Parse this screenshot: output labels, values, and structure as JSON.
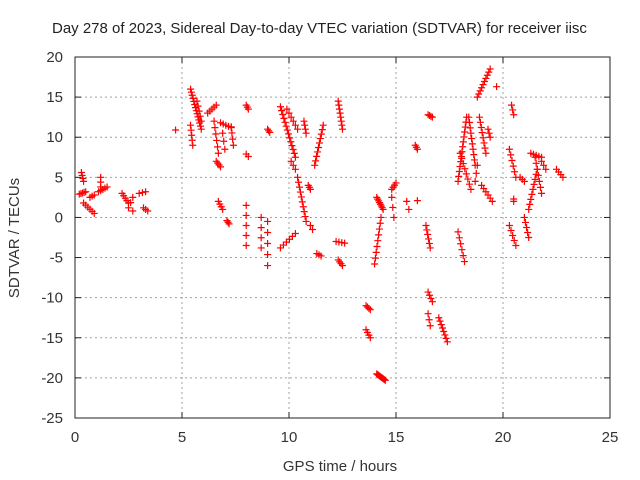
{
  "chart_data": {
    "type": "scatter",
    "title": "Day 278 of 2023, Sidereal Day-to-day VTEC variation (SDTVAR) for receiver iisc",
    "xlabel": "GPS time / hours",
    "ylabel": "SDTVAR / TECUs",
    "xlim": [
      0,
      25
    ],
    "ylim": [
      -25,
      20
    ],
    "x_ticks": [
      "0",
      "5",
      "10",
      "15",
      "20",
      "25"
    ],
    "y_ticks": [
      "-25",
      "-20",
      "-15",
      "-10",
      "-5",
      "0",
      "5",
      "10",
      "15",
      "20"
    ],
    "grid": true,
    "marker": "plus",
    "color": "#ff0000",
    "segments": [
      {
        "x1": 0.2,
        "y1": 2.9,
        "x2": 0.5,
        "y2": 3.2,
        "n": 5
      },
      {
        "x1": 0.3,
        "y1": 5.6,
        "x2": 0.4,
        "y2": 4.5,
        "n": 4
      },
      {
        "x1": 0.4,
        "y1": 1.8,
        "x2": 0.9,
        "y2": 0.5,
        "n": 6
      },
      {
        "x1": 0.7,
        "y1": 2.5,
        "x2": 0.9,
        "y2": 2.8,
        "n": 3
      },
      {
        "x1": 1.2,
        "y1": 5.0,
        "x2": 1.2,
        "y2": 3.8,
        "n": 3
      },
      {
        "x1": 1.1,
        "y1": 3.2,
        "x2": 1.5,
        "y2": 3.8,
        "n": 5
      },
      {
        "x1": 2.2,
        "y1": 3.0,
        "x2": 2.5,
        "y2": 1.8,
        "n": 5
      },
      {
        "x1": 2.5,
        "y1": 1.2,
        "x2": 2.7,
        "y2": 2.5,
        "n": 3
      },
      {
        "x1": 2.7,
        "y1": 0.8,
        "x2": 2.7,
        "y2": 0.8,
        "n": 1
      },
      {
        "x1": 3.0,
        "y1": 3.0,
        "x2": 3.3,
        "y2": 3.2,
        "n": 3
      },
      {
        "x1": 3.2,
        "y1": 1.2,
        "x2": 3.4,
        "y2": 0.8,
        "n": 3
      },
      {
        "x1": 4.7,
        "y1": 10.9,
        "x2": 4.7,
        "y2": 10.9,
        "n": 1
      },
      {
        "x1": 5.4,
        "y1": 16.0,
        "x2": 5.9,
        "y2": 11.0,
        "n": 14
      },
      {
        "x1": 5.4,
        "y1": 11.5,
        "x2": 5.5,
        "y2": 9.0,
        "n": 5
      },
      {
        "x1": 5.7,
        "y1": 14.5,
        "x2": 5.9,
        "y2": 12.0,
        "n": 5
      },
      {
        "x1": 6.2,
        "y1": 13.0,
        "x2": 6.6,
        "y2": 14.0,
        "n": 5
      },
      {
        "x1": 6.5,
        "y1": 12.0,
        "x2": 6.7,
        "y2": 8.0,
        "n": 6
      },
      {
        "x1": 6.6,
        "y1": 7.0,
        "x2": 6.8,
        "y2": 6.3,
        "n": 4
      },
      {
        "x1": 6.8,
        "y1": 11.8,
        "x2": 7.3,
        "y2": 11.2,
        "n": 5
      },
      {
        "x1": 6.9,
        "y1": 10.5,
        "x2": 7.0,
        "y2": 8.5,
        "n": 3
      },
      {
        "x1": 7.3,
        "y1": 11.3,
        "x2": 7.4,
        "y2": 9.0,
        "n": 4
      },
      {
        "x1": 6.7,
        "y1": 2.0,
        "x2": 6.9,
        "y2": 1.0,
        "n": 4
      },
      {
        "x1": 7.1,
        "y1": -0.4,
        "x2": 7.2,
        "y2": -0.8,
        "n": 3
      },
      {
        "x1": 8.0,
        "y1": 14.0,
        "x2": 8.1,
        "y2": 13.5,
        "n": 3
      },
      {
        "x1": 8.0,
        "y1": 7.9,
        "x2": 8.1,
        "y2": 7.6,
        "n": 2
      },
      {
        "x1": 8.0,
        "y1": 1.5,
        "x2": 8.0,
        "y2": -3.5,
        "n": 5
      },
      {
        "x1": 8.7,
        "y1": 0.0,
        "x2": 8.7,
        "y2": -3.8,
        "n": 4
      },
      {
        "x1": 9.0,
        "y1": 11.0,
        "x2": 9.1,
        "y2": 10.6,
        "n": 3
      },
      {
        "x1": 9.0,
        "y1": -0.5,
        "x2": 9.0,
        "y2": -6.0,
        "n": 5
      },
      {
        "x1": 9.6,
        "y1": 13.8,
        "x2": 10.3,
        "y2": 7.5,
        "n": 14
      },
      {
        "x1": 9.9,
        "y1": 13.5,
        "x2": 10.4,
        "y2": 11.0,
        "n": 6
      },
      {
        "x1": 10.1,
        "y1": 7.0,
        "x2": 10.3,
        "y2": 6.0,
        "n": 3
      },
      {
        "x1": 10.4,
        "y1": 5.0,
        "x2": 10.8,
        "y2": -0.5,
        "n": 10
      },
      {
        "x1": 10.7,
        "y1": 12.0,
        "x2": 10.8,
        "y2": 10.5,
        "n": 4
      },
      {
        "x1": 10.3,
        "y1": -2.0,
        "x2": 9.6,
        "y2": -3.8,
        "n": 6
      },
      {
        "x1": 10.9,
        "y1": 4.0,
        "x2": 11.0,
        "y2": 3.5,
        "n": 3
      },
      {
        "x1": 11.0,
        "y1": -1.0,
        "x2": 11.1,
        "y2": -1.5,
        "n": 2
      },
      {
        "x1": 11.2,
        "y1": 6.5,
        "x2": 11.6,
        "y2": 11.5,
        "n": 10
      },
      {
        "x1": 11.3,
        "y1": -4.5,
        "x2": 11.5,
        "y2": -4.8,
        "n": 3
      },
      {
        "x1": 12.3,
        "y1": 14.5,
        "x2": 12.5,
        "y2": 11.0,
        "n": 8
      },
      {
        "x1": 12.2,
        "y1": -3.0,
        "x2": 12.6,
        "y2": -3.2,
        "n": 4
      },
      {
        "x1": 12.3,
        "y1": -5.3,
        "x2": 12.5,
        "y2": -6.0,
        "n": 4
      },
      {
        "x1": 13.6,
        "y1": -11.0,
        "x2": 13.8,
        "y2": -11.5,
        "n": 4
      },
      {
        "x1": 13.6,
        "y1": -14.0,
        "x2": 13.8,
        "y2": -15.0,
        "n": 4
      },
      {
        "x1": 14.1,
        "y1": 2.5,
        "x2": 14.4,
        "y2": 1.0,
        "n": 8
      },
      {
        "x1": 14.3,
        "y1": 0.0,
        "x2": 14.0,
        "y2": -5.8,
        "n": 9
      },
      {
        "x1": 14.1,
        "y1": -19.5,
        "x2": 14.5,
        "y2": -20.3,
        "n": 10
      },
      {
        "x1": 14.8,
        "y1": 3.5,
        "x2": 15.0,
        "y2": 4.3,
        "n": 4
      },
      {
        "x1": 14.8,
        "y1": 2.5,
        "x2": 14.9,
        "y2": 0.0,
        "n": 3
      },
      {
        "x1": 15.5,
        "y1": 2.0,
        "x2": 15.6,
        "y2": 1.0,
        "n": 2
      },
      {
        "x1": 15.9,
        "y1": 9.0,
        "x2": 16.0,
        "y2": 8.5,
        "n": 3
      },
      {
        "x1": 16.0,
        "y1": 2.1,
        "x2": 16.0,
        "y2": 2.1,
        "n": 1
      },
      {
        "x1": 16.5,
        "y1": 12.8,
        "x2": 16.7,
        "y2": 12.5,
        "n": 4
      },
      {
        "x1": 16.4,
        "y1": -1.0,
        "x2": 16.6,
        "y2": -3.8,
        "n": 6
      },
      {
        "x1": 16.5,
        "y1": -9.3,
        "x2": 16.7,
        "y2": -10.5,
        "n": 4
      },
      {
        "x1": 16.5,
        "y1": -12.0,
        "x2": 16.6,
        "y2": -13.5,
        "n": 3
      },
      {
        "x1": 17.0,
        "y1": -12.5,
        "x2": 17.4,
        "y2": -15.5,
        "n": 8
      },
      {
        "x1": 18.3,
        "y1": 12.5,
        "x2": 17.9,
        "y2": 4.5,
        "n": 14
      },
      {
        "x1": 18.0,
        "y1": 8.0,
        "x2": 18.5,
        "y2": 3.5,
        "n": 8
      },
      {
        "x1": 18.4,
        "y1": 12.5,
        "x2": 18.7,
        "y2": 6.5,
        "n": 10
      },
      {
        "x1": 18.7,
        "y1": 4.5,
        "x2": 18.8,
        "y2": 6.5,
        "n": 3
      },
      {
        "x1": 17.9,
        "y1": -1.8,
        "x2": 18.2,
        "y2": -5.5,
        "n": 6
      },
      {
        "x1": 18.8,
        "y1": 15.0,
        "x2": 19.4,
        "y2": 18.5,
        "n": 10
      },
      {
        "x1": 18.9,
        "y1": 12.5,
        "x2": 19.2,
        "y2": 8.0,
        "n": 8
      },
      {
        "x1": 19.0,
        "y1": 4.0,
        "x2": 19.5,
        "y2": 2.0,
        "n": 6
      },
      {
        "x1": 19.3,
        "y1": 11.0,
        "x2": 19.4,
        "y2": 10.0,
        "n": 3
      },
      {
        "x1": 19.7,
        "y1": 16.3,
        "x2": 19.7,
        "y2": 16.3,
        "n": 1
      },
      {
        "x1": 20.4,
        "y1": 14.0,
        "x2": 20.5,
        "y2": 12.8,
        "n": 3
      },
      {
        "x1": 20.3,
        "y1": 8.5,
        "x2": 20.6,
        "y2": 5.0,
        "n": 6
      },
      {
        "x1": 20.5,
        "y1": 2.3,
        "x2": 20.5,
        "y2": 2.0,
        "n": 2
      },
      {
        "x1": 20.3,
        "y1": -1.0,
        "x2": 20.6,
        "y2": -3.5,
        "n": 5
      },
      {
        "x1": 20.8,
        "y1": 5.0,
        "x2": 21.0,
        "y2": 4.5,
        "n": 3
      },
      {
        "x1": 21.0,
        "y1": 0.0,
        "x2": 21.2,
        "y2": -2.5,
        "n": 5
      },
      {
        "x1": 21.2,
        "y1": 1.0,
        "x2": 21.6,
        "y2": 6.0,
        "n": 9
      },
      {
        "x1": 21.3,
        "y1": 8.0,
        "x2": 21.8,
        "y2": 7.5,
        "n": 5
      },
      {
        "x1": 21.5,
        "y1": 7.5,
        "x2": 21.8,
        "y2": 3.0,
        "n": 7
      },
      {
        "x1": 21.8,
        "y1": 7.0,
        "x2": 22.0,
        "y2": 6.0,
        "n": 3
      },
      {
        "x1": 22.5,
        "y1": 6.0,
        "x2": 22.8,
        "y2": 5.0,
        "n": 4
      }
    ]
  }
}
